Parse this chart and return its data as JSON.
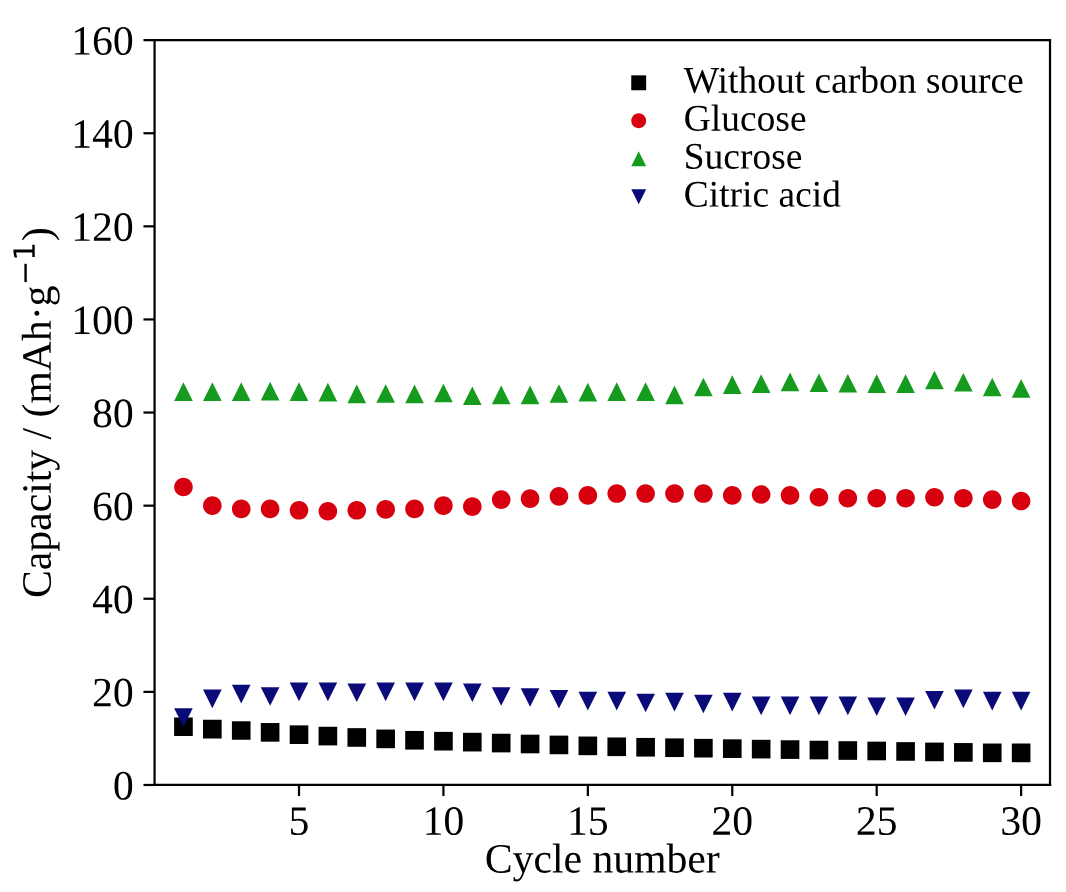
{
  "chart_data": {
    "type": "scatter",
    "xlabel": "Cycle number",
    "ylabel": "Capacity / (mAh·g$^{−1}$)",
    "x": [
      1,
      2,
      3,
      4,
      5,
      6,
      7,
      8,
      9,
      10,
      11,
      12,
      13,
      14,
      15,
      16,
      17,
      18,
      19,
      20,
      21,
      22,
      23,
      24,
      25,
      26,
      27,
      28,
      29,
      30
    ],
    "xlim": [
      0,
      31
    ],
    "xticks": [
      5,
      10,
      15,
      20,
      25,
      30
    ],
    "ylim": [
      0,
      160
    ],
    "yticks": [
      0,
      20,
      40,
      60,
      80,
      100,
      120,
      140,
      160
    ],
    "grid": false,
    "legend": "top right",
    "series": [
      {
        "name": "Without carbon source",
        "color": "#000000",
        "marker": "square",
        "values": [
          12.5,
          12,
          11.7,
          11.3,
          10.8,
          10.5,
          10.2,
          9.9,
          9.6,
          9.4,
          9.2,
          9,
          8.8,
          8.6,
          8.4,
          8.2,
          8.1,
          8,
          7.9,
          7.8,
          7.7,
          7.6,
          7.5,
          7.4,
          7.3,
          7.2,
          7.1,
          7,
          6.9,
          6.9
        ]
      },
      {
        "name": "Glucose",
        "color": "#d7000f",
        "marker": "circle",
        "values": [
          64,
          60,
          59.3,
          59.3,
          59,
          58.8,
          59,
          59.2,
          59.3,
          60,
          59.8,
          61.3,
          61.5,
          62,
          62.2,
          62.6,
          62.6,
          62.6,
          62.6,
          62.2,
          62.4,
          62.2,
          61.8,
          61.6,
          61.6,
          61.6,
          61.8,
          61.6,
          61.3,
          61
        ]
      },
      {
        "name": "Sucrose",
        "color": "#159b1e",
        "marker": "triangle",
        "values": [
          84.5,
          84.5,
          84.5,
          84.6,
          84.5,
          84.4,
          84,
          84.1,
          84,
          84.2,
          83.6,
          83.8,
          83.8,
          84.1,
          84.4,
          84.5,
          84.5,
          83.8,
          85.5,
          86,
          86.2,
          86.6,
          86.4,
          86.3,
          86.2,
          86.2,
          87,
          86.5,
          85.5,
          85.2
        ]
      },
      {
        "name": "Citric acid",
        "color": "#0a0a78",
        "marker": "triangle_down",
        "values": [
          14.5,
          18.5,
          19.5,
          19,
          20,
          20,
          19.8,
          20,
          20,
          20,
          19.8,
          19,
          18.8,
          18.4,
          18,
          18,
          17.6,
          17.8,
          17.4,
          17.8,
          17,
          17,
          17,
          17,
          16.8,
          16.8,
          18.2,
          18.5,
          18,
          18
        ]
      }
    ]
  }
}
